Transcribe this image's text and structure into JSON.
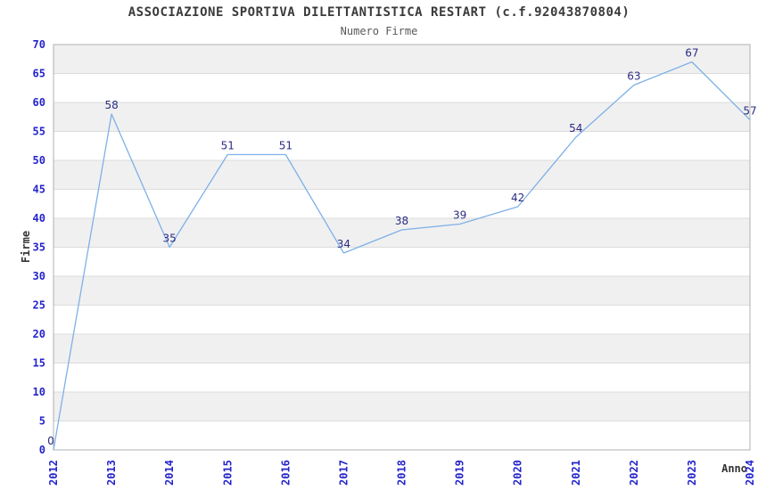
{
  "header": {
    "title": "ASSOCIAZIONE SPORTIVA DILETTANTISTICA RESTART (c.f.92043870804)",
    "subtitle": "Numero Firme"
  },
  "colors": {
    "line": "#7EB0E8",
    "value_label": "#2B2B85",
    "tick_label": "#2424CC",
    "band": "#F0F0F0",
    "grid": "#DCDCDC",
    "border": "#B0B0B0",
    "title": "#3A3A3A",
    "subtitle": "#595959",
    "axis_title": "#333333"
  },
  "chart_data": {
    "type": "line",
    "title": "ASSOCIAZIONE SPORTIVA DILETTANTISTICA RESTART (c.f.92043870804)",
    "subtitle": "Numero Firme",
    "xlabel": "Anno",
    "ylabel": "Firme",
    "x": [
      "2012",
      "2013",
      "2014",
      "2015",
      "2016",
      "2017",
      "2018",
      "2019",
      "2020",
      "2021",
      "2022",
      "2023",
      "2024"
    ],
    "values": [
      0,
      58,
      35,
      51,
      51,
      34,
      38,
      39,
      42,
      54,
      63,
      67,
      57
    ],
    "ylim": [
      0,
      70
    ],
    "ytick_step": 5,
    "grid": true,
    "bands": "alternating-horizontal",
    "legend": "none",
    "point_labels_shown": true,
    "x_tick_rotation_deg": 90
  }
}
